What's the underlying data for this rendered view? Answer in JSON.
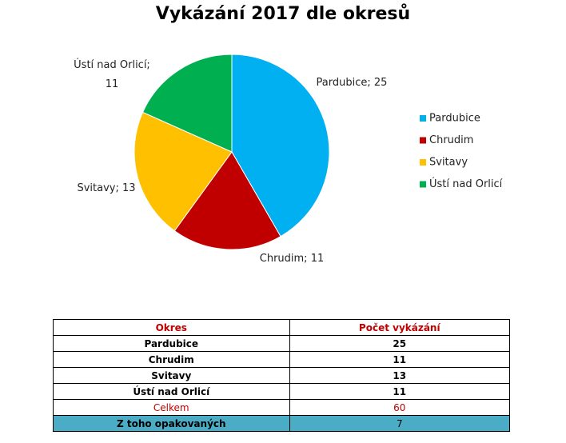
{
  "chart_data": {
    "type": "pie",
    "title": "Vykázání 2017 dle okresů",
    "categories": [
      "Pardubice",
      "Chrudim",
      "Svitavy",
      "Ústí nad Orlicí"
    ],
    "values": [
      25,
      11,
      13,
      11
    ],
    "value_labels": [
      "Pardubice; 25",
      "Chrudim; 11",
      "Svitavy; 13",
      "Ústí nad Orlicí; 11"
    ],
    "colors": [
      "#00b0f0",
      "#c00000",
      "#ffc000",
      "#00b050"
    ],
    "legend": "right"
  },
  "table": {
    "header": [
      "Okres",
      "Počet vykázání"
    ],
    "rows": [
      [
        "Pardubice",
        "25"
      ],
      [
        "Chrudim",
        "11"
      ],
      [
        "Svitavy",
        "13"
      ],
      [
        "Ústí nad Orlicí",
        "11"
      ],
      [
        "Celkem",
        "60"
      ],
      [
        "Z toho opakovaných",
        "7"
      ]
    ]
  }
}
